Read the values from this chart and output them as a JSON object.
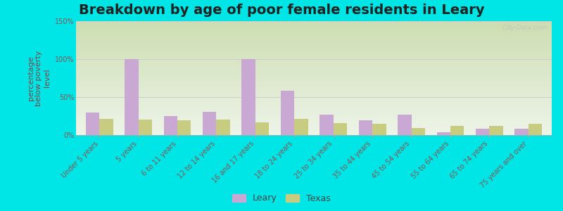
{
  "title": "Breakdown by age of poor female residents in Leary",
  "ylabel": "percentage\nbelow poverty\nlevel",
  "categories": [
    "Under 5 years",
    "5 years",
    "6 to 11 years",
    "12 to 14 years",
    "16 and 17 years",
    "18 to 24 years",
    "25 to 34 years",
    "35 to 44 years",
    "45 to 54 years",
    "55 to 64 years",
    "65 to 74 years",
    "75 years and over"
  ],
  "leary_values": [
    30,
    100,
    25,
    31,
    100,
    58,
    27,
    19,
    27,
    4,
    8,
    8
  ],
  "texas_values": [
    21,
    20,
    19,
    20,
    17,
    21,
    16,
    15,
    9,
    12,
    12,
    15
  ],
  "leary_color": "#c9a8d4",
  "texas_color": "#c8cc80",
  "outer_bg": "#00e5e5",
  "plot_bg_top": "#e8f0e0",
  "plot_bg_bottom": "#d8e8b8",
  "ylim": [
    0,
    150
  ],
  "yticks": [
    0,
    50,
    100,
    150
  ],
  "ytick_labels": [
    "0%",
    "50%",
    "100%",
    "150%"
  ],
  "bar_width": 0.35,
  "title_fontsize": 14,
  "axis_label_fontsize": 8,
  "tick_fontsize": 7,
  "legend_fontsize": 9,
  "watermark": "City-Data.com",
  "ylabel_color": "#8b4040",
  "tick_color": "#885555",
  "gridline_color": "#cccccc"
}
